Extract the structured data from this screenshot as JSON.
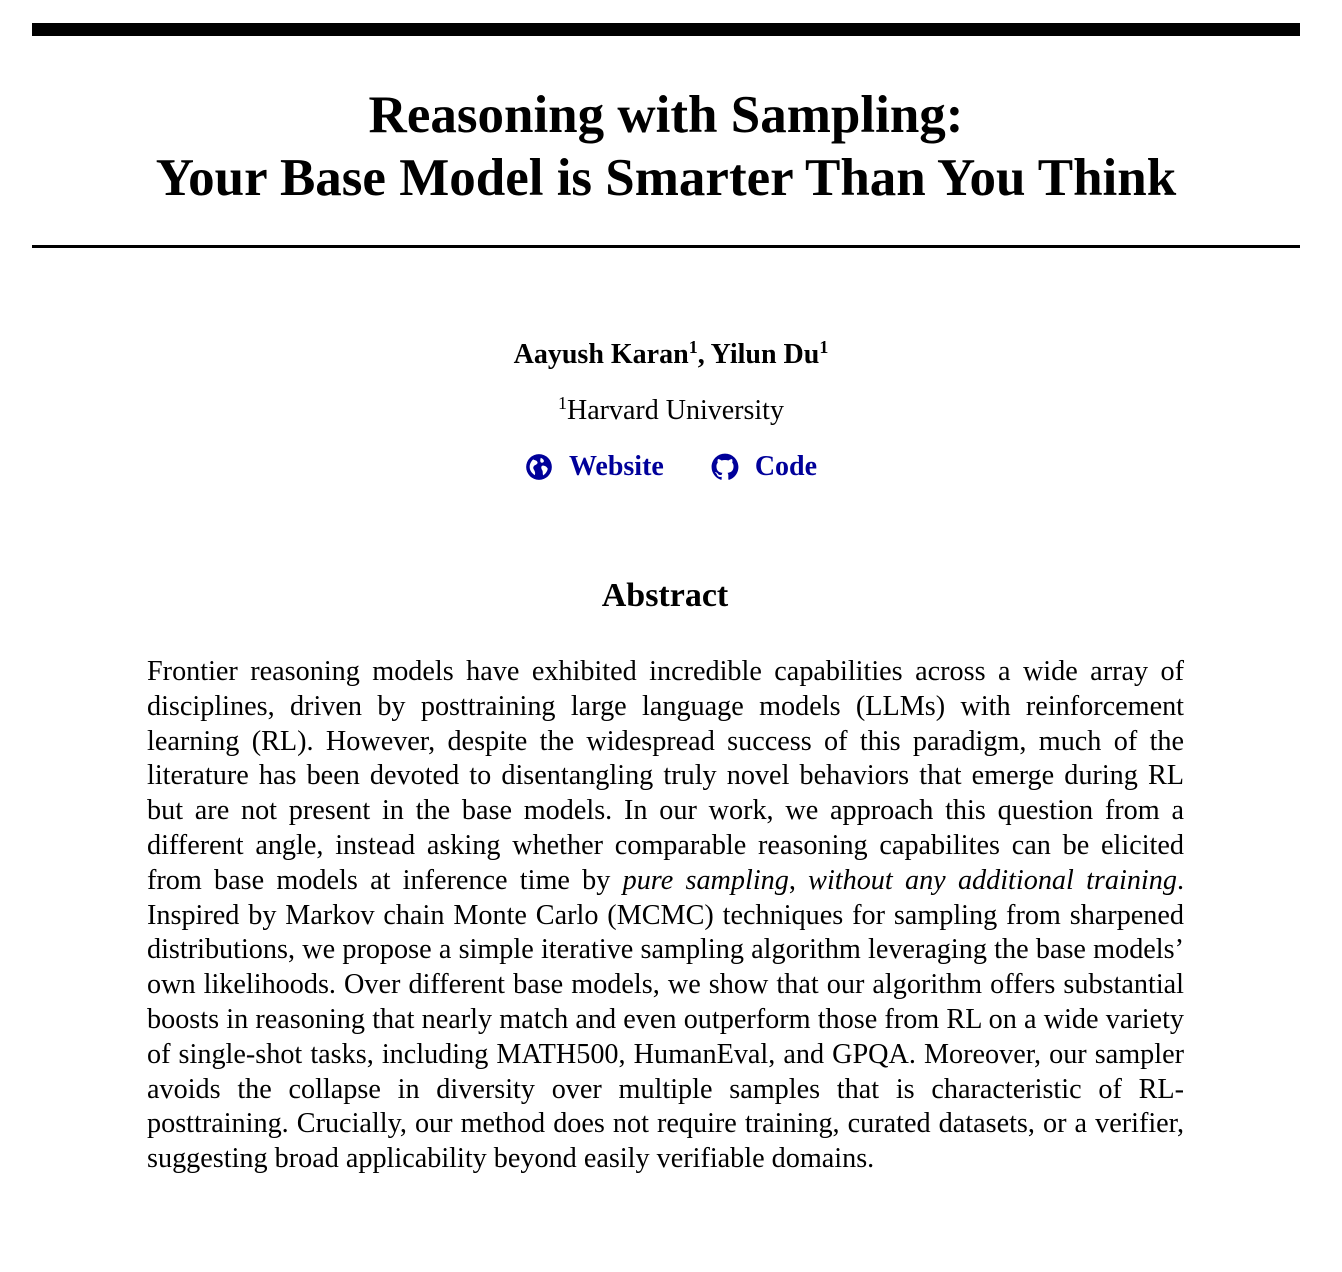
{
  "paper": {
    "title_line1": "Reasoning with Sampling:",
    "title_line2": "Your Base Model is Smarter Than You Think",
    "authors": [
      {
        "name": "Aayush Karan",
        "affiliation_mark": "1",
        "separator": ", "
      },
      {
        "name": "Yilun Du",
        "affiliation_mark": "1",
        "separator": ""
      }
    ],
    "affiliation": {
      "mark": "1",
      "name": "Harvard University"
    },
    "links": [
      {
        "label": "Website",
        "icon": "globe-icon"
      },
      {
        "label": "Code",
        "icon": "github-icon"
      }
    ],
    "link_color": "#00009a"
  },
  "abstract": {
    "heading": "Abstract",
    "text_1": "Frontier reasoning models have exhibited incredible capabilities across a wide array of disciplines, driven by posttraining large language models (LLMs) with reinforcement learning (RL). However, despite the widespread success of this paradigm, much of the literature has been devoted to disentangling truly novel be­haviors that emerge during RL but are not present in the base models. In our work, we approach this question from a different angle, instead asking whether compa­rable reasoning capabilites can be elicited from base models at inference time by ",
    "emph_1": "pure sampling",
    "text_2": ", ",
    "emph_2": "without any additional training",
    "text_3": ". Inspired by Markov chain Monte Carlo (MCMC) techniques for sampling from sharpened distributions, we pro­pose a simple iterative sampling algorithm leveraging the base models’ own like­lihoods. Over different base models, we show that our algorithm offers substantial boosts in reasoning that nearly match and even outperform those from RL on a wide variety of single-shot tasks, including MATH500, HumanEval, and GPQA. Moreover, our sampler avoids the collapse in diversity over multiple samples that is characteristic of RL-posttraining. Crucially, our method does not require train­ing, curated datasets, or a verifier, suggesting broad applicability beyond easily verifiable domains."
  }
}
